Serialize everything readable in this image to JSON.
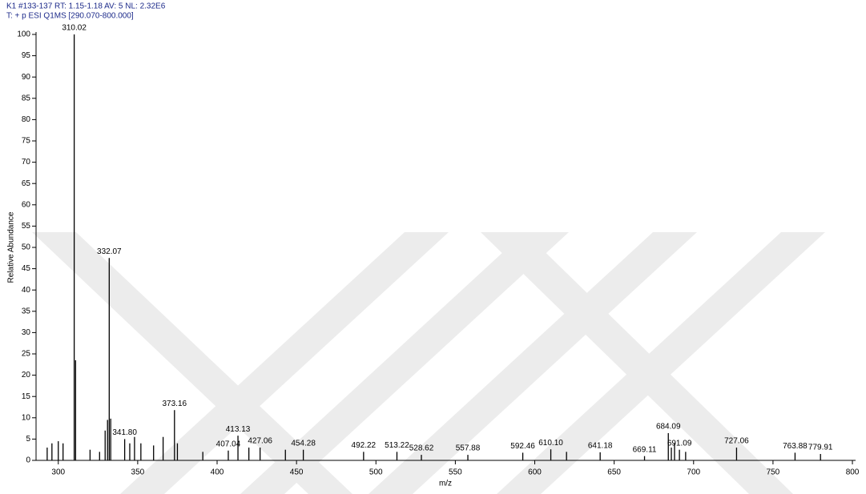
{
  "chart_data": {
    "type": "stem",
    "header": [
      "K1 #133-137  RT: 1.15-1.18  AV: 5  NL: 2.32E6",
      "T: + p ESI Q1MS [290.070-800.000]"
    ],
    "x_label": "m/z",
    "y_label": "Relative Abundance",
    "color": "#000000",
    "x": [
      293,
      296,
      300,
      303,
      310.02,
      310.9,
      320,
      326,
      329.5,
      331,
      332.07,
      333,
      341.8,
      345,
      348,
      352,
      360,
      366,
      373.16,
      375,
      391,
      407.04,
      413.13,
      420,
      427.06,
      443,
      454.28,
      492.22,
      513.22,
      528.62,
      557.88,
      592.46,
      610.1,
      620,
      641.18,
      669.11,
      684.09,
      686,
      688,
      691.09,
      695,
      727.06,
      763.88,
      779.91
    ],
    "values": [
      3,
      4,
      4.5,
      4,
      100,
      23.5,
      2.5,
      2,
      7,
      9.5,
      47.5,
      9.8,
      5,
      4,
      5.5,
      4,
      3.5,
      5.5,
      11.8,
      4,
      2,
      2.3,
      5.8,
      3,
      3,
      2.5,
      2.5,
      2,
      2,
      1.3,
      1.3,
      1.8,
      2.6,
      2,
      1.9,
      1,
      6.4,
      3,
      4,
      2.5,
      2,
      3,
      1.8,
      1.5
    ],
    "peak_labels": [
      null,
      null,
      null,
      null,
      "310.02",
      null,
      null,
      null,
      null,
      null,
      "332.07",
      null,
      "341.80",
      null,
      null,
      null,
      null,
      null,
      "373.16",
      null,
      null,
      "407.04",
      "413.13",
      null,
      "427.06",
      null,
      "454.28",
      "492.22",
      "513.22",
      "528.62",
      "557.88",
      "592.46",
      "610.10",
      null,
      "641.18",
      "669.11",
      "684.09",
      null,
      null,
      "691.09",
      null,
      "727.06",
      "763.88",
      "779.91"
    ],
    "xlim": [
      286,
      802
    ],
    "ylim": [
      0,
      100
    ],
    "xticks": [
      300,
      350,
      400,
      450,
      500,
      550,
      600,
      650,
      700,
      750,
      800
    ],
    "yticks": [
      0,
      5,
      10,
      15,
      20,
      25,
      30,
      35,
      40,
      45,
      50,
      55,
      60,
      65,
      70,
      75,
      80,
      85,
      90,
      95,
      100
    ]
  }
}
